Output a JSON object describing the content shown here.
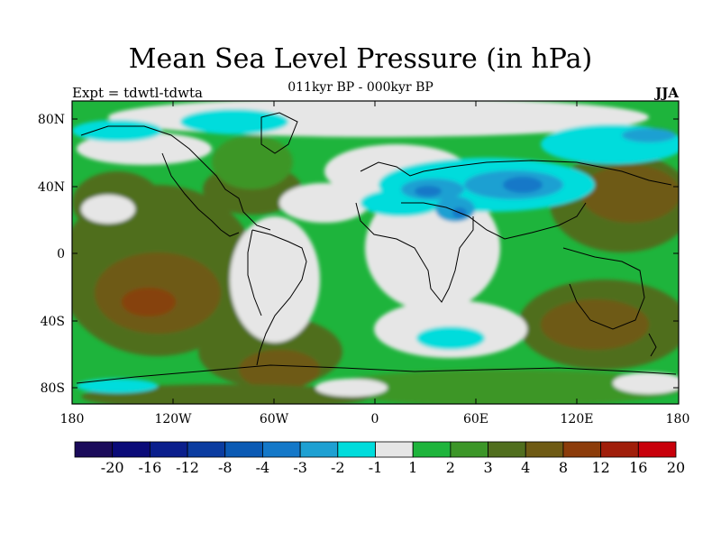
{
  "title": "Mean Sea Level Pressure (in hPa)",
  "subtitle_left": "Expt = tdwtl-tdwta",
  "subtitle_center": "011kyr BP - 000kyr BP",
  "subtitle_right": "JJA",
  "lat_labels": [
    "80N",
    "40N",
    "0",
    "40S",
    "80S"
  ],
  "lon_labels": [
    "180",
    "120W",
    "60W",
    "0",
    "60E",
    "120E",
    "180"
  ],
  "colorbar": {
    "labels": [
      "-20",
      "-16",
      "-12",
      "-8",
      "-4",
      "-3",
      "-2",
      "-1",
      "1",
      "2",
      "3",
      "4",
      "8",
      "12",
      "16",
      "20"
    ],
    "colors": [
      "#1a0a5a",
      "#0a0a78",
      "#0a1e8c",
      "#0a3ca0",
      "#0a5ab4",
      "#1478c8",
      "#1ea0d2",
      "#00dcdc",
      "#e6e6e6",
      "#1eb43c",
      "#3c9628",
      "#506e1e",
      "#6e5a14",
      "#8c3c0a",
      "#a01e0a",
      "#c8000a"
    ]
  }
}
